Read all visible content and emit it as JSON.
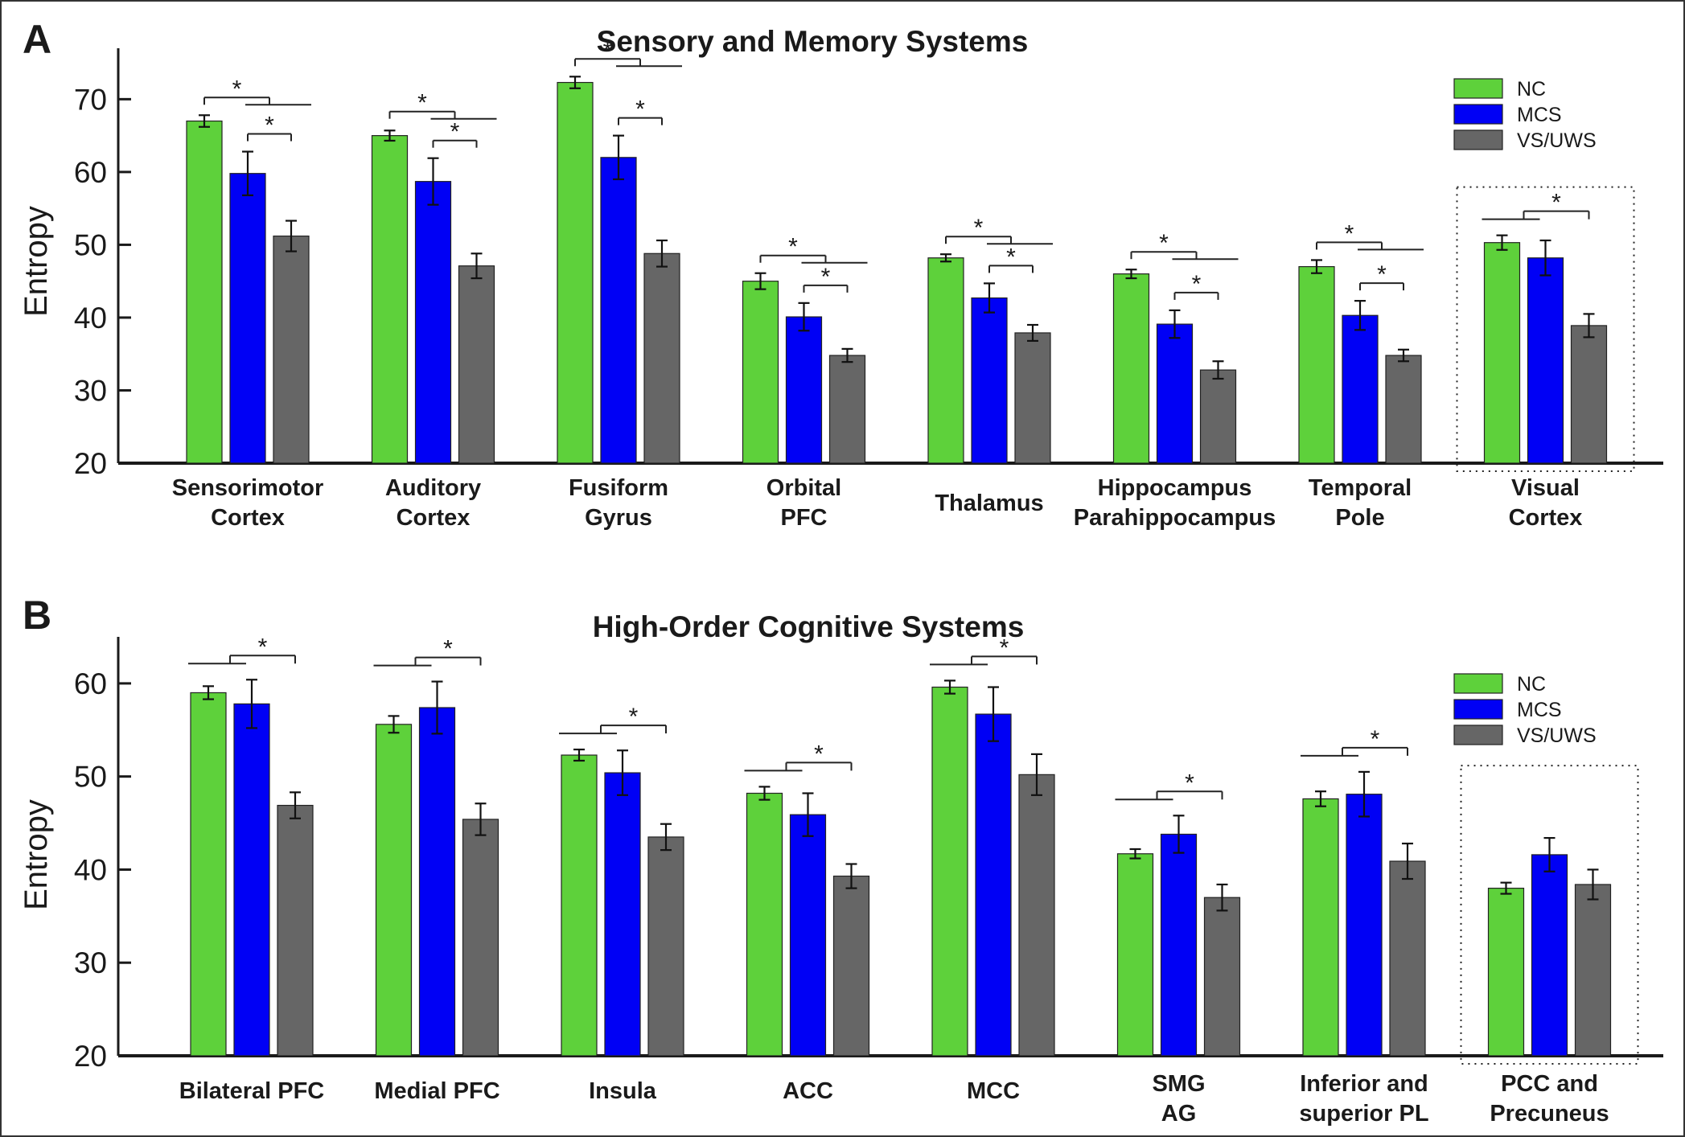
{
  "legend": {
    "labels": [
      "NC",
      "MCS",
      "VS/UWS"
    ]
  },
  "colors": {
    "NC": "#5ed13b",
    "MCS": "#0000f5",
    "VS_UWS": "#666666",
    "axis": "#1a1a1a"
  },
  "chart_data": [
    {
      "type": "bar",
      "panel_letter": "A",
      "title": "Sensory and Memory Systems",
      "ylabel": "Entropy",
      "ylim": [
        20,
        77
      ],
      "yticks": [
        20,
        30,
        40,
        50,
        60,
        70
      ],
      "legend_position": "top-right",
      "categories": [
        [
          "Sensorimotor",
          "Cortex"
        ],
        [
          "Auditory",
          "Cortex"
        ],
        [
          "Fusiform",
          "Gyrus"
        ],
        [
          "Orbital",
          "PFC"
        ],
        [
          "Thalamus"
        ],
        [
          "Hippocampus",
          "Parahippocampus"
        ],
        [
          "Temporal",
          "Pole"
        ],
        [
          "Visual",
          "Cortex"
        ]
      ],
      "series": [
        {
          "name": "NC",
          "values": [
            67.0,
            65.0,
            72.3,
            45.0,
            48.2,
            46.0,
            47.0,
            50.3
          ],
          "errors": [
            0.8,
            0.7,
            0.8,
            1.1,
            0.5,
            0.6,
            0.9,
            1.0
          ]
        },
        {
          "name": "MCS",
          "values": [
            59.8,
            58.7,
            62.0,
            40.1,
            42.7,
            39.1,
            40.3,
            48.2
          ],
          "errors": [
            3.0,
            3.2,
            3.0,
            1.9,
            2.0,
            1.9,
            2.0,
            2.4
          ]
        },
        {
          "name": "VS/UWS",
          "values": [
            51.2,
            47.1,
            48.8,
            34.8,
            37.9,
            32.8,
            34.8,
            38.9
          ],
          "errors": [
            2.1,
            1.7,
            1.8,
            0.9,
            1.1,
            1.2,
            0.8,
            1.6
          ]
        }
      ],
      "significance": [
        {
          "category": 0,
          "type": "nc_vs_rest",
          "label": "*"
        },
        {
          "category": 0,
          "type": "mcs_vs_vs",
          "label": "*"
        },
        {
          "category": 1,
          "type": "nc_vs_rest",
          "label": "*"
        },
        {
          "category": 1,
          "type": "mcs_vs_vs",
          "label": "*"
        },
        {
          "category": 2,
          "type": "nc_vs_rest",
          "label": "*"
        },
        {
          "category": 2,
          "type": "mcs_vs_vs",
          "label": "*"
        },
        {
          "category": 3,
          "type": "nc_vs_rest",
          "label": "*"
        },
        {
          "category": 3,
          "type": "mcs_vs_vs",
          "label": "*"
        },
        {
          "category": 4,
          "type": "nc_vs_rest",
          "label": "*"
        },
        {
          "category": 4,
          "type": "mcs_vs_vs",
          "label": "*"
        },
        {
          "category": 5,
          "type": "nc_vs_rest",
          "label": "*"
        },
        {
          "category": 5,
          "type": "mcs_vs_vs",
          "label": "*"
        },
        {
          "category": 6,
          "type": "nc_vs_rest",
          "label": "*"
        },
        {
          "category": 6,
          "type": "mcs_vs_vs",
          "label": "*"
        },
        {
          "category": 7,
          "type": "vs_vs_rest",
          "label": "*"
        }
      ],
      "highlighted_category": 7
    },
    {
      "type": "bar",
      "panel_letter": "B",
      "title": "High-Order Cognitive Systems",
      "ylabel": "Entropy",
      "ylim": [
        20,
        65
      ],
      "yticks": [
        20,
        30,
        40,
        50,
        60
      ],
      "legend_position": "top-right",
      "categories": [
        [
          "Bilateral PFC"
        ],
        [
          "Medial PFC"
        ],
        [
          "Insula"
        ],
        [
          "ACC"
        ],
        [
          "MCC"
        ],
        [
          "SMG",
          "AG"
        ],
        [
          "Inferior and",
          "superior PL"
        ],
        [
          "PCC and",
          "Precuneus"
        ]
      ],
      "series": [
        {
          "name": "NC",
          "values": [
            59.0,
            55.6,
            52.3,
            48.2,
            59.6,
            41.7,
            47.6,
            38.0
          ],
          "errors": [
            0.7,
            0.9,
            0.6,
            0.7,
            0.7,
            0.5,
            0.8,
            0.6
          ]
        },
        {
          "name": "MCS",
          "values": [
            57.8,
            57.4,
            50.4,
            45.9,
            56.7,
            43.8,
            48.1,
            41.6
          ],
          "errors": [
            2.6,
            2.8,
            2.4,
            2.3,
            2.9,
            2.0,
            2.4,
            1.8
          ]
        },
        {
          "name": "VS/UWS",
          "values": [
            46.9,
            45.4,
            43.5,
            39.3,
            50.2,
            37.0,
            40.9,
            38.4
          ],
          "errors": [
            1.4,
            1.7,
            1.4,
            1.3,
            2.2,
            1.4,
            1.9,
            1.6
          ]
        }
      ],
      "significance": [
        {
          "category": 0,
          "type": "vs_vs_rest",
          "label": "*"
        },
        {
          "category": 1,
          "type": "vs_vs_rest",
          "label": "*"
        },
        {
          "category": 2,
          "type": "vs_vs_rest",
          "label": "*"
        },
        {
          "category": 3,
          "type": "vs_vs_rest",
          "label": "*"
        },
        {
          "category": 4,
          "type": "vs_vs_rest",
          "label": "*"
        },
        {
          "category": 5,
          "type": "vs_vs_rest",
          "label": "*"
        },
        {
          "category": 6,
          "type": "vs_vs_rest",
          "label": "*"
        }
      ],
      "highlighted_category": 7
    }
  ]
}
